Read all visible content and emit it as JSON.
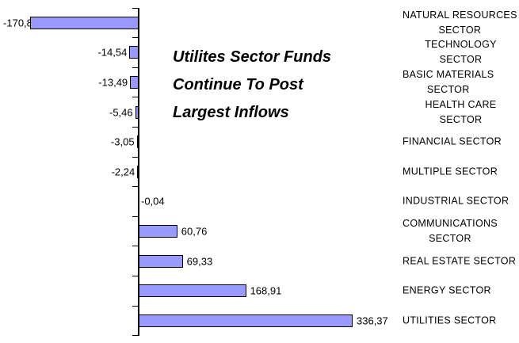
{
  "title": "Utilites Sector Funds\nContinue To Post\nLargest Inflows",
  "chart_data": {
    "type": "bar",
    "orientation": "horizontal",
    "title": "Utilites Sector Funds Continue To Post Largest Inflows",
    "categories": [
      "NATURAL RESOURCES\nSECTOR",
      "TECHNOLOGY SECTOR",
      "BASIC MATERIALS\nSECTOR",
      "HEALTH CARE SECTOR",
      "FINANCIAL SECTOR",
      "MULTIPLE SECTOR",
      "INDUSTRIAL SECTOR",
      "COMMUNICATIONS\nSECTOR",
      "REAL ESTATE SECTOR",
      "ENERGY SECTOR",
      "UTILITIES SECTOR"
    ],
    "values": [
      -170.8,
      -14.54,
      -13.49,
      -5.46,
      -3.05,
      -2.24,
      -0.04,
      60.76,
      69.33,
      168.91,
      336.37
    ],
    "value_labels": [
      "-170,8",
      "-14,54",
      "-13,49",
      "-5,46",
      "-3,05",
      "-2,24",
      "-0,04",
      "60,76",
      "69,33",
      "168,91",
      "336,37"
    ],
    "xlim": [
      -218,
      375
    ],
    "grid": false,
    "legend": false,
    "decimal_separator": ",",
    "bar_color": "#9999FF",
    "bar_border_color": "#000000",
    "axis_color": "#000000",
    "text_color": "#000000",
    "background_color": "#FFFFFF"
  }
}
